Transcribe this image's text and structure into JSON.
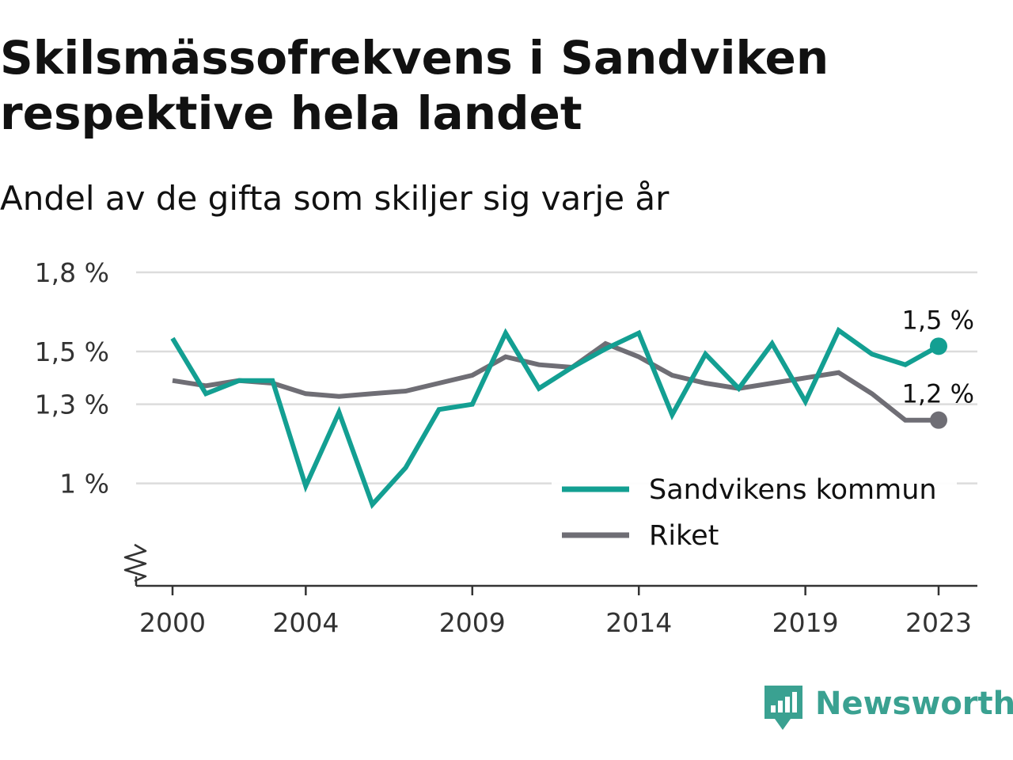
{
  "chart_data": {
    "type": "line",
    "title": "Skilsmässofrekvens i Sandviken respektive hela landet",
    "subtitle": "Andel av de gifta som skiljer sig varje år",
    "x": [
      2000,
      2001,
      2002,
      2003,
      2004,
      2005,
      2006,
      2007,
      2008,
      2009,
      2010,
      2011,
      2012,
      2013,
      2014,
      2015,
      2016,
      2017,
      2018,
      2019,
      2020,
      2021,
      2022,
      2023
    ],
    "x_tick_values": [
      2000,
      2004,
      2009,
      2014,
      2019,
      2023
    ],
    "x_tick_labels": [
      "2000",
      "2004",
      "2009",
      "2014",
      "2019",
      "2023"
    ],
    "y_tick_values": [
      1.0,
      1.3,
      1.5,
      1.8
    ],
    "y_tick_labels": [
      "1 %",
      "1,3 %",
      "1,5 %",
      "1,8 %"
    ],
    "ylim": [
      0.7,
      1.8
    ],
    "y_axis_broken": true,
    "grid": "horizontal",
    "legend_position": "bottom-right",
    "series": [
      {
        "name": "Sandvikens kommun",
        "color": "#139f92",
        "end_label": "1,5 %",
        "values": [
          1.55,
          1.34,
          1.39,
          1.39,
          0.99,
          1.27,
          0.92,
          1.06,
          1.28,
          1.3,
          1.57,
          1.36,
          1.44,
          1.51,
          1.57,
          1.26,
          1.49,
          1.36,
          1.53,
          1.31,
          1.58,
          1.49,
          1.45,
          1.52
        ]
      },
      {
        "name": "Riket",
        "color": "#6f6e75",
        "end_label": "1,2 %",
        "values": [
          1.39,
          1.37,
          1.39,
          1.38,
          1.34,
          1.33,
          1.34,
          1.35,
          1.38,
          1.41,
          1.48,
          1.45,
          1.44,
          1.53,
          1.48,
          1.41,
          1.38,
          1.36,
          1.38,
          1.4,
          1.42,
          1.34,
          1.24,
          1.24
        ]
      }
    ]
  },
  "brand": {
    "name": "Newsworthy",
    "color": "#3aa191"
  }
}
